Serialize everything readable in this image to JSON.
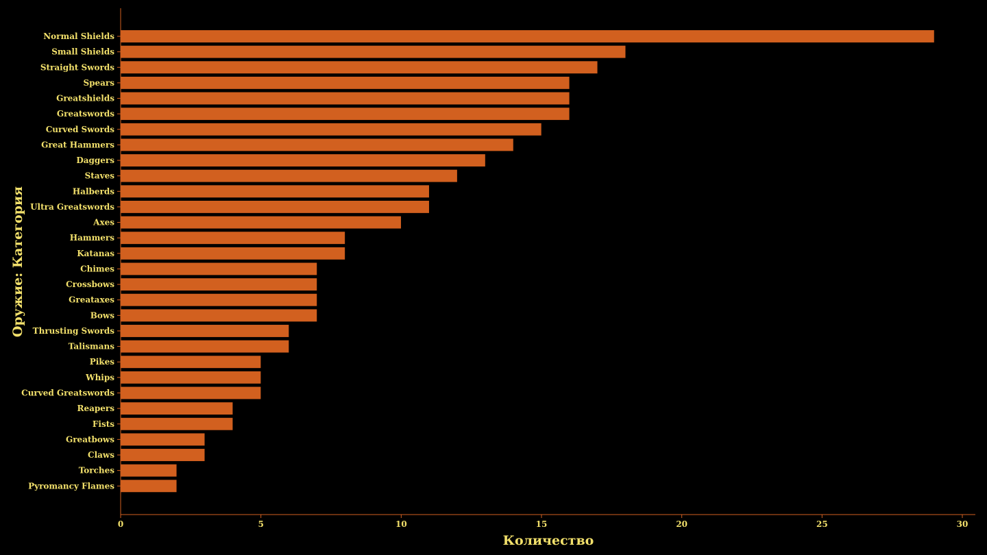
{
  "chart_data": {
    "type": "bar",
    "orientation": "horizontal",
    "xlabel": "Количество",
    "ylabel": "Оружие: Категория",
    "xlim": [
      0,
      30.5
    ],
    "xticks": [
      0,
      5,
      10,
      15,
      20,
      25,
      30
    ],
    "grid": false,
    "categories": [
      "Normal Shields",
      "Small Shields",
      "Straight Swords",
      "Spears",
      "Greatshields",
      "Greatswords",
      "Curved Swords",
      "Great Hammers",
      "Daggers",
      "Staves",
      "Halberds",
      "Ultra Greatswords",
      "Axes",
      "Hammers",
      "Katanas",
      "Chimes",
      "Crossbows",
      "Greataxes",
      "Bows",
      "Thrusting Swords",
      "Talismans",
      "Pikes",
      "Whips",
      "Curved Greatswords",
      "Reapers",
      "Fists",
      "Greatbows",
      "Claws",
      "Torches",
      "Pyromancy Flames"
    ],
    "values": [
      29,
      18,
      17,
      16,
      16,
      16,
      15,
      14,
      13,
      12,
      11,
      11,
      10,
      8,
      8,
      7,
      7,
      7,
      7,
      6,
      6,
      5,
      5,
      5,
      4,
      4,
      3,
      3,
      2,
      2
    ],
    "colors": {
      "bar": "#d2601f",
      "bar_edge": "#000000",
      "axis": "#d2601f",
      "text": "#f2e06b",
      "background": "#000000"
    }
  }
}
